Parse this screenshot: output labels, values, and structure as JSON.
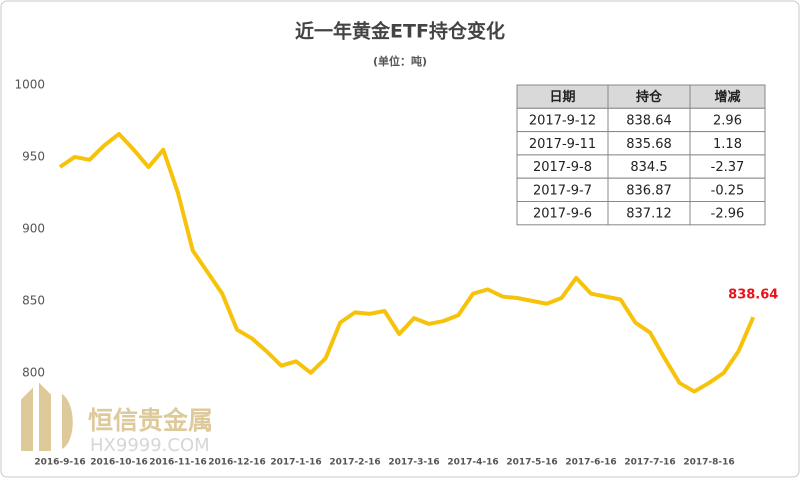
{
  "chart_data": {
    "type": "line",
    "title": "近一年黄金ETF持仓变化",
    "subtitle": "(单位：吨)",
    "categories": [
      "2016-9-16",
      null,
      null,
      null,
      "2016-10-16",
      null,
      null,
      null,
      "2016-11-16",
      null,
      null,
      null,
      "2016-12-16",
      null,
      null,
      null,
      "2017-1-16",
      null,
      null,
      null,
      "2017-2-16",
      null,
      null,
      null,
      "2017-3-16",
      null,
      null,
      null,
      "2017-4-16",
      null,
      null,
      null,
      "2017-5-16",
      null,
      null,
      null,
      "2017-6-16",
      null,
      null,
      null,
      "2017-7-16",
      null,
      null,
      null,
      "2017-8-16",
      null,
      null,
      null
    ],
    "values": [
      943,
      950,
      948,
      958,
      966,
      955,
      943,
      955,
      925,
      885,
      870,
      855,
      830,
      824,
      815,
      805,
      808,
      800,
      810,
      835,
      842,
      841,
      843,
      827,
      838,
      834,
      836,
      840,
      855,
      858,
      853,
      852,
      850,
      848,
      852,
      866,
      855,
      853,
      851,
      835,
      828,
      810,
      793,
      787,
      793,
      800,
      815,
      838.64
    ],
    "color": "#f7c20a",
    "ylim": [
      745,
      1000
    ],
    "yticks": [
      800,
      850,
      900,
      950,
      1000
    ],
    "grid": false
  },
  "table": {
    "header": [
      "日期",
      "持仓",
      "增减"
    ],
    "rows": [
      [
        "2017-9-12",
        "838.64",
        "2.96"
      ],
      [
        "2017-9-11",
        "835.68",
        "1.18"
      ],
      [
        "2017-9-8",
        "834.5",
        "-2.37"
      ],
      [
        "2017-9-7",
        "836.87",
        "-0.25"
      ],
      [
        "2017-9-6",
        "837.12",
        "-2.96"
      ]
    ]
  },
  "watermark": [
    "恒信贵金属",
    "HX9999.COM"
  ]
}
